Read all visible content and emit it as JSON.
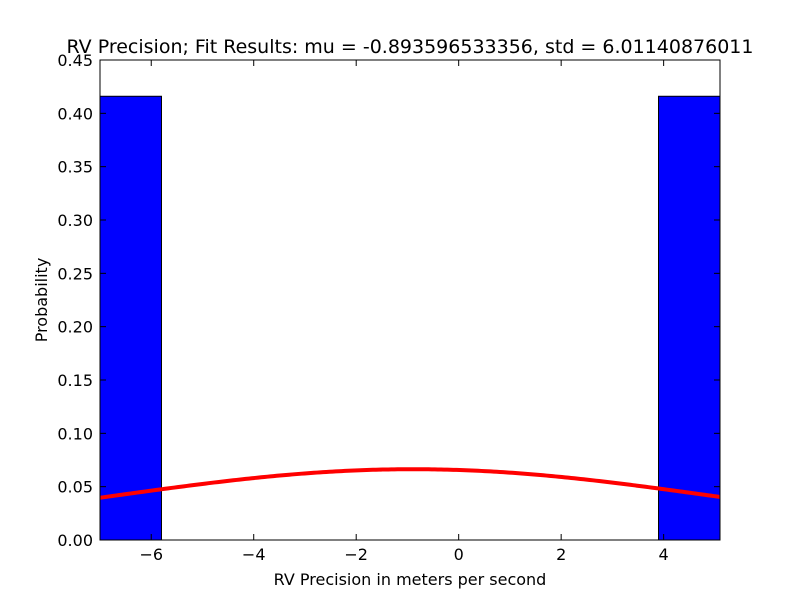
{
  "chart_data": {
    "type": "bar",
    "title": "RV Precision; Fit Results: mu = -0.893596533356, std = 6.01140876011",
    "xlabel": "RV Precision in meters per second",
    "ylabel": "Probability",
    "xlim": [
      -7,
      5.1
    ],
    "ylim": [
      0,
      0.45
    ],
    "xticks": [
      -6,
      -4,
      -2,
      0,
      2,
      4
    ],
    "xtick_labels": [
      "−6",
      "−4",
      "−2",
      "0",
      "2",
      "4"
    ],
    "yticks": [
      0,
      0.05,
      0.1,
      0.15,
      0.2,
      0.25,
      0.3,
      0.35,
      0.4,
      0.45
    ],
    "ytick_labels": [
      "0.00",
      "0.05",
      "0.10",
      "0.15",
      "0.20",
      "0.25",
      "0.30",
      "0.35",
      "0.40",
      "0.45"
    ],
    "grid": false,
    "bins": [
      {
        "x0": -7.0,
        "x1": -5.8,
        "value": 0.416
      },
      {
        "x0": 3.9,
        "x1": 5.1,
        "value": 0.416
      }
    ],
    "fit_curve": {
      "type": "normal_pdf",
      "mu": -0.893596533356,
      "std": 6.01140876011
    },
    "colors": {
      "bars": "#0000ff",
      "bar_edge": "#000000",
      "curve": "#ff0000"
    }
  }
}
